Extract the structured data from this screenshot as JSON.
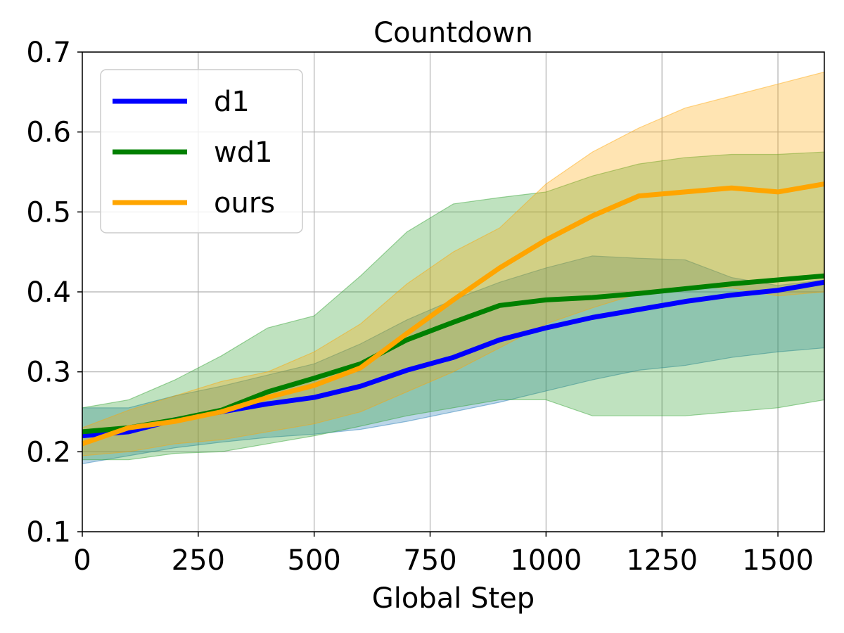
{
  "chart_data": {
    "type": "line",
    "title": "Countdown",
    "xlabel": "Global Step",
    "ylabel": "",
    "xlim": [
      0,
      1600
    ],
    "ylim": [
      0.1,
      0.7
    ],
    "xticks": [
      0,
      250,
      500,
      750,
      1000,
      1250,
      1500
    ],
    "xtick_labels": [
      "0",
      "250",
      "500",
      "750",
      "1000",
      "1250",
      "1500"
    ],
    "yticks": [
      0.1,
      0.2,
      0.3,
      0.4,
      0.5,
      0.6,
      0.7
    ],
    "ytick_labels": [
      "0.1",
      "0.2",
      "0.3",
      "0.4",
      "0.5",
      "0.6",
      "0.7"
    ],
    "grid": true,
    "legend_position": "top-left",
    "series": [
      {
        "name": "d1",
        "color": "#0000ff",
        "band_color": "#1f77b4",
        "x": [
          0,
          100,
          200,
          300,
          400,
          500,
          600,
          700,
          800,
          900,
          1000,
          1100,
          1200,
          1300,
          1400,
          1500,
          1600
        ],
        "mean": [
          0.22,
          0.225,
          0.24,
          0.25,
          0.26,
          0.268,
          0.282,
          0.302,
          0.318,
          0.34,
          0.355,
          0.368,
          0.378,
          0.388,
          0.396,
          0.402,
          0.412
        ],
        "lower": [
          0.185,
          0.195,
          0.205,
          0.212,
          0.218,
          0.222,
          0.228,
          0.238,
          0.25,
          0.262,
          0.276,
          0.29,
          0.302,
          0.308,
          0.318,
          0.325,
          0.33
        ],
        "upper": [
          0.255,
          0.255,
          0.27,
          0.282,
          0.296,
          0.31,
          0.335,
          0.365,
          0.39,
          0.412,
          0.43,
          0.445,
          0.442,
          0.44,
          0.418,
          0.408,
          0.415
        ]
      },
      {
        "name": "wd1",
        "color": "#008000",
        "band_color": "#2ca02c",
        "x": [
          0,
          100,
          200,
          300,
          400,
          500,
          600,
          700,
          800,
          900,
          1000,
          1100,
          1200,
          1300,
          1400,
          1500,
          1600
        ],
        "mean": [
          0.225,
          0.23,
          0.24,
          0.252,
          0.275,
          0.292,
          0.31,
          0.34,
          0.362,
          0.383,
          0.39,
          0.393,
          0.398,
          0.404,
          0.41,
          0.415,
          0.42
        ],
        "lower": [
          0.19,
          0.19,
          0.198,
          0.2,
          0.21,
          0.22,
          0.232,
          0.245,
          0.255,
          0.265,
          0.265,
          0.245,
          0.245,
          0.245,
          0.25,
          0.255,
          0.265
        ],
        "upper": [
          0.255,
          0.265,
          0.29,
          0.32,
          0.355,
          0.37,
          0.42,
          0.475,
          0.51,
          0.518,
          0.525,
          0.545,
          0.56,
          0.568,
          0.572,
          0.572,
          0.575
        ]
      },
      {
        "name": "ours",
        "color": "#ffa500",
        "band_color": "#ffa500",
        "x": [
          0,
          100,
          200,
          300,
          400,
          500,
          600,
          700,
          800,
          900,
          1000,
          1100,
          1200,
          1300,
          1400,
          1500,
          1600
        ],
        "mean": [
          0.21,
          0.23,
          0.238,
          0.25,
          0.268,
          0.283,
          0.305,
          0.348,
          0.39,
          0.43,
          0.465,
          0.495,
          0.52,
          0.525,
          0.53,
          0.525,
          0.535
        ],
        "lower": [
          0.195,
          0.2,
          0.21,
          0.215,
          0.225,
          0.235,
          0.25,
          0.275,
          0.3,
          0.33,
          0.36,
          0.38,
          0.398,
          0.405,
          0.405,
          0.395,
          0.4
        ],
        "upper": [
          0.23,
          0.252,
          0.27,
          0.288,
          0.3,
          0.325,
          0.36,
          0.41,
          0.45,
          0.48,
          0.535,
          0.575,
          0.605,
          0.63,
          0.645,
          0.66,
          0.675
        ]
      }
    ]
  }
}
